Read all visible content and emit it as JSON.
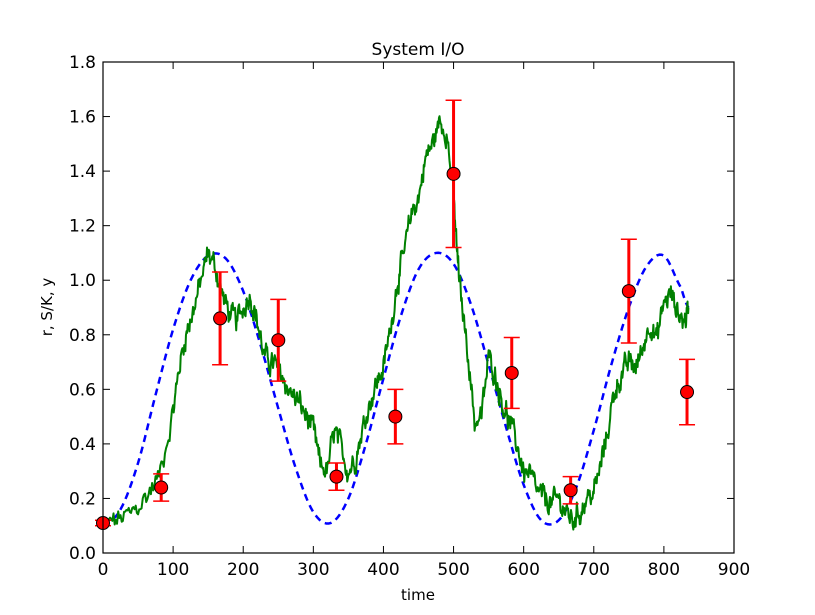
{
  "chart_data": {
    "type": "line",
    "title": "System I/O",
    "xlabel": "time",
    "ylabel": "r, S/K, y",
    "xlim": [
      0,
      900
    ],
    "ylim": [
      0.0,
      1.8
    ],
    "xticks": [
      "0",
      "100",
      "200",
      "300",
      "400",
      "500",
      "600",
      "700",
      "800",
      "900"
    ],
    "yticks": [
      "0.0",
      "0.2",
      "0.4",
      "0.6",
      "0.8",
      "1.0",
      "1.2",
      "1.4",
      "1.6",
      "1.8"
    ],
    "grid": false,
    "legend": "none",
    "series": [
      {
        "kind": "dashed-line",
        "color": "#0000ff",
        "x": [
          0,
          25,
          50,
          75,
          100,
          125,
          150,
          175,
          200,
          225,
          250,
          275,
          300,
          325,
          350,
          375,
          400,
          425,
          450,
          475,
          500,
          525,
          550,
          575,
          600,
          625,
          650,
          675,
          700,
          725,
          750,
          775,
          800,
          825,
          835
        ],
        "values": [
          0.1,
          0.16,
          0.33,
          0.58,
          0.82,
          1.0,
          1.09,
          1.08,
          0.96,
          0.76,
          0.53,
          0.31,
          0.15,
          0.11,
          0.2,
          0.4,
          0.64,
          0.87,
          1.04,
          1.1,
          1.06,
          0.91,
          0.69,
          0.46,
          0.25,
          0.12,
          0.12,
          0.24,
          0.45,
          0.69,
          0.9,
          1.05,
          1.09,
          0.97,
          0.9
        ]
      },
      {
        "kind": "noisy-line",
        "color": "#008000",
        "x": [
          0,
          20,
          40,
          60,
          80,
          100,
          110,
          120,
          130,
          140,
          150,
          160,
          170,
          180,
          190,
          200,
          210,
          220,
          230,
          240,
          250,
          260,
          270,
          280,
          290,
          300,
          310,
          320,
          330,
          340,
          350,
          360,
          370,
          380,
          390,
          400,
          410,
          420,
          430,
          440,
          450,
          460,
          470,
          480,
          490,
          500,
          505,
          510,
          520,
          530,
          540,
          550,
          560,
          570,
          580,
          590,
          600,
          610,
          620,
          630,
          640,
          650,
          660,
          670,
          680,
          690,
          700,
          710,
          720,
          730,
          740,
          750,
          760,
          770,
          780,
          790,
          800,
          810,
          820,
          830,
          835
        ],
        "values": [
          0.1,
          0.12,
          0.14,
          0.2,
          0.28,
          0.52,
          0.7,
          0.82,
          0.9,
          1.0,
          1.1,
          1.05,
          0.95,
          0.88,
          0.85,
          0.9,
          0.95,
          0.85,
          0.72,
          0.7,
          0.68,
          0.62,
          0.58,
          0.55,
          0.5,
          0.45,
          0.32,
          0.3,
          0.45,
          0.38,
          0.3,
          0.35,
          0.45,
          0.55,
          0.62,
          0.68,
          0.82,
          1.0,
          1.1,
          1.25,
          1.3,
          1.45,
          1.5,
          1.58,
          1.55,
          1.3,
          1.1,
          0.95,
          0.75,
          0.48,
          0.5,
          0.72,
          0.65,
          0.55,
          0.48,
          0.4,
          0.3,
          0.28,
          0.22,
          0.2,
          0.18,
          0.2,
          0.15,
          0.12,
          0.15,
          0.2,
          0.22,
          0.32,
          0.45,
          0.6,
          0.65,
          0.7,
          0.68,
          0.75,
          0.85,
          0.78,
          0.92,
          0.95,
          0.88,
          0.85,
          0.9
        ]
      },
      {
        "kind": "points-with-errorbars",
        "color": "#ff0000",
        "x": [
          0,
          83,
          167,
          250,
          333,
          417,
          500,
          583,
          667,
          750,
          833
        ],
        "values": [
          0.11,
          0.24,
          0.86,
          0.78,
          0.28,
          0.5,
          1.39,
          0.66,
          0.23,
          0.96,
          0.59
        ],
        "errors": [
          0.01,
          0.05,
          0.17,
          0.15,
          0.05,
          0.1,
          0.27,
          0.13,
          0.05,
          0.19,
          0.12
        ]
      }
    ]
  }
}
